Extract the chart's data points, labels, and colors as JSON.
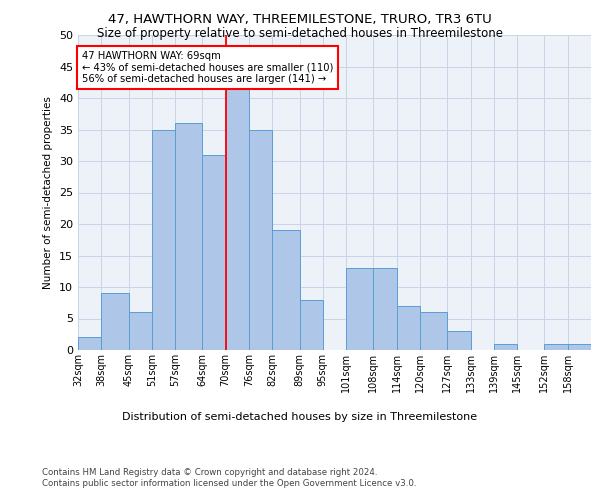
{
  "title1": "47, HAWTHORN WAY, THREEMILESTONE, TRURO, TR3 6TU",
  "title2": "Size of property relative to semi-detached houses in Threemilestone",
  "xlabel": "Distribution of semi-detached houses by size in Threemilestone",
  "ylabel": "Number of semi-detached properties",
  "categories": [
    "32sqm",
    "38sqm",
    "45sqm",
    "51sqm",
    "57sqm",
    "64sqm",
    "70sqm",
    "76sqm",
    "82sqm",
    "89sqm",
    "95sqm",
    "101sqm",
    "108sqm",
    "114sqm",
    "120sqm",
    "127sqm",
    "133sqm",
    "139sqm",
    "145sqm",
    "152sqm",
    "158sqm"
  ],
  "values": [
    2,
    9,
    6,
    35,
    36,
    31,
    42,
    35,
    19,
    8,
    0,
    13,
    13,
    7,
    6,
    3,
    0,
    1,
    0,
    1,
    1
  ],
  "bar_color": "#aec6e8",
  "bar_edge_color": "#5a9ed4",
  "annotation_text1": "47 HAWTHORN WAY: 69sqm",
  "annotation_text2": "← 43% of semi-detached houses are smaller (110)",
  "annotation_text3": "56% of semi-detached houses are larger (141) →",
  "annotation_box_color": "white",
  "annotation_box_edge": "red",
  "line_color": "red",
  "ylim": [
    0,
    50
  ],
  "yticks": [
    0,
    5,
    10,
    15,
    20,
    25,
    30,
    35,
    40,
    45,
    50
  ],
  "grid_color": "#c8d4e8",
  "bg_color": "#edf2f9",
  "footer1": "Contains HM Land Registry data © Crown copyright and database right 2024.",
  "footer2": "Contains public sector information licensed under the Open Government Licence v3.0.",
  "title1_fontsize": 9.5,
  "title2_fontsize": 8.5,
  "bin_edges": [
    32,
    38,
    45,
    51,
    57,
    64,
    70,
    76,
    82,
    89,
    95,
    101,
    108,
    114,
    120,
    127,
    133,
    139,
    145,
    152,
    158,
    164
  ],
  "property_line_x": 70
}
